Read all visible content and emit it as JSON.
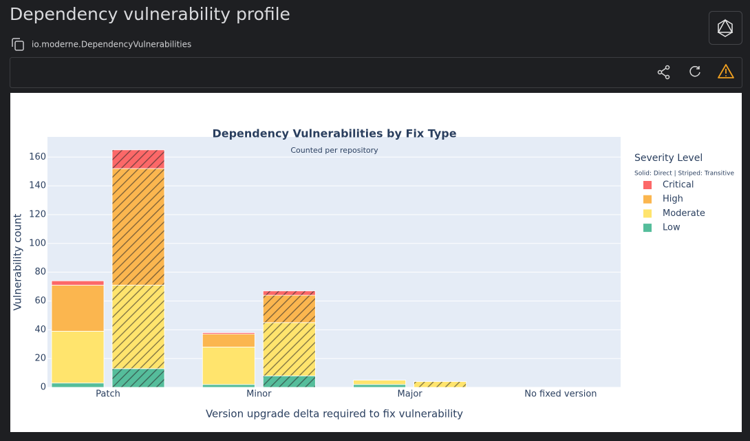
{
  "header": {
    "title": "Dependency vulnerability profile",
    "recipe": "io.moderne.DependencyVulnerabilities"
  },
  "chart_data": {
    "type": "bar",
    "stacked": true,
    "title": "Dependency Vulnerabilities by Fix Type",
    "subtitle": "Counted per repository",
    "x_label": "Version upgrade delta required to fix vulnerability",
    "y_label": "Vulnerability count",
    "legend_title": "Severity Level",
    "legend_note": "Solid: Direct | Striped: Transitive",
    "categories": [
      "Patch",
      "Minor",
      "Major",
      "No fixed version"
    ],
    "series": [
      {
        "name": "Critical",
        "color": "#fc6868",
        "values": [
          3,
          1,
          0,
          0
        ],
        "transitive": [
          13,
          3,
          0,
          0
        ]
      },
      {
        "name": "High",
        "color": "#fbb64f",
        "values": [
          32,
          9,
          0,
          0
        ],
        "transitive": [
          81,
          19,
          0,
          0
        ]
      },
      {
        "name": "Moderate",
        "color": "#ffe46d",
        "values": [
          36,
          26,
          3,
          0
        ],
        "transitive": [
          58,
          37,
          4,
          0
        ]
      },
      {
        "name": "Low",
        "color": "#55bd9b",
        "values": [
          3,
          2,
          2,
          0
        ],
        "transitive": [
          13,
          8,
          0,
          0
        ]
      }
    ],
    "ylim": [
      0,
      174
    ],
    "yticks": [
      0,
      20,
      40,
      60,
      80,
      100,
      120,
      140,
      160
    ],
    "grid": true
  }
}
